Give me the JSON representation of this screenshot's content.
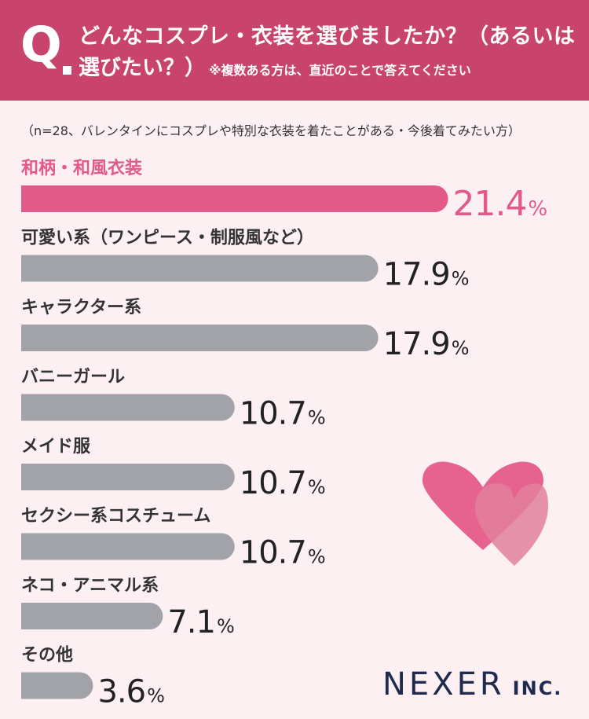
{
  "question": {
    "mark": "Q",
    "line1": "どんなコスプレ・衣装を選びましたか？（あるいは",
    "line2": "選びたい？）",
    "note": "※複数ある方は、直近のことで答えてください"
  },
  "sample_note": "（n=28、バレンタインにコスプレや特別な衣装を着たことがある・今後着てみたい方）",
  "brand": {
    "name": "NEXER",
    "suffix": "INC."
  },
  "colors": {
    "header": "#c9446c",
    "highlight": "#e25a88",
    "bar": "#a2a3a8",
    "background": "#fdf0f3"
  },
  "chart_data": {
    "type": "bar",
    "orientation": "horizontal",
    "unit": "%",
    "categories": [
      "和柄・和風衣装",
      "可愛い系（ワンピース・制服風など）",
      "キャラクター系",
      "バニーガール",
      "メイド服",
      "セクシー系コスチューム",
      "ネコ・アニマル系",
      "その他"
    ],
    "values": [
      21.4,
      17.9,
      17.9,
      10.7,
      10.7,
      10.7,
      7.1,
      3.6
    ],
    "highlight_index": 0
  }
}
